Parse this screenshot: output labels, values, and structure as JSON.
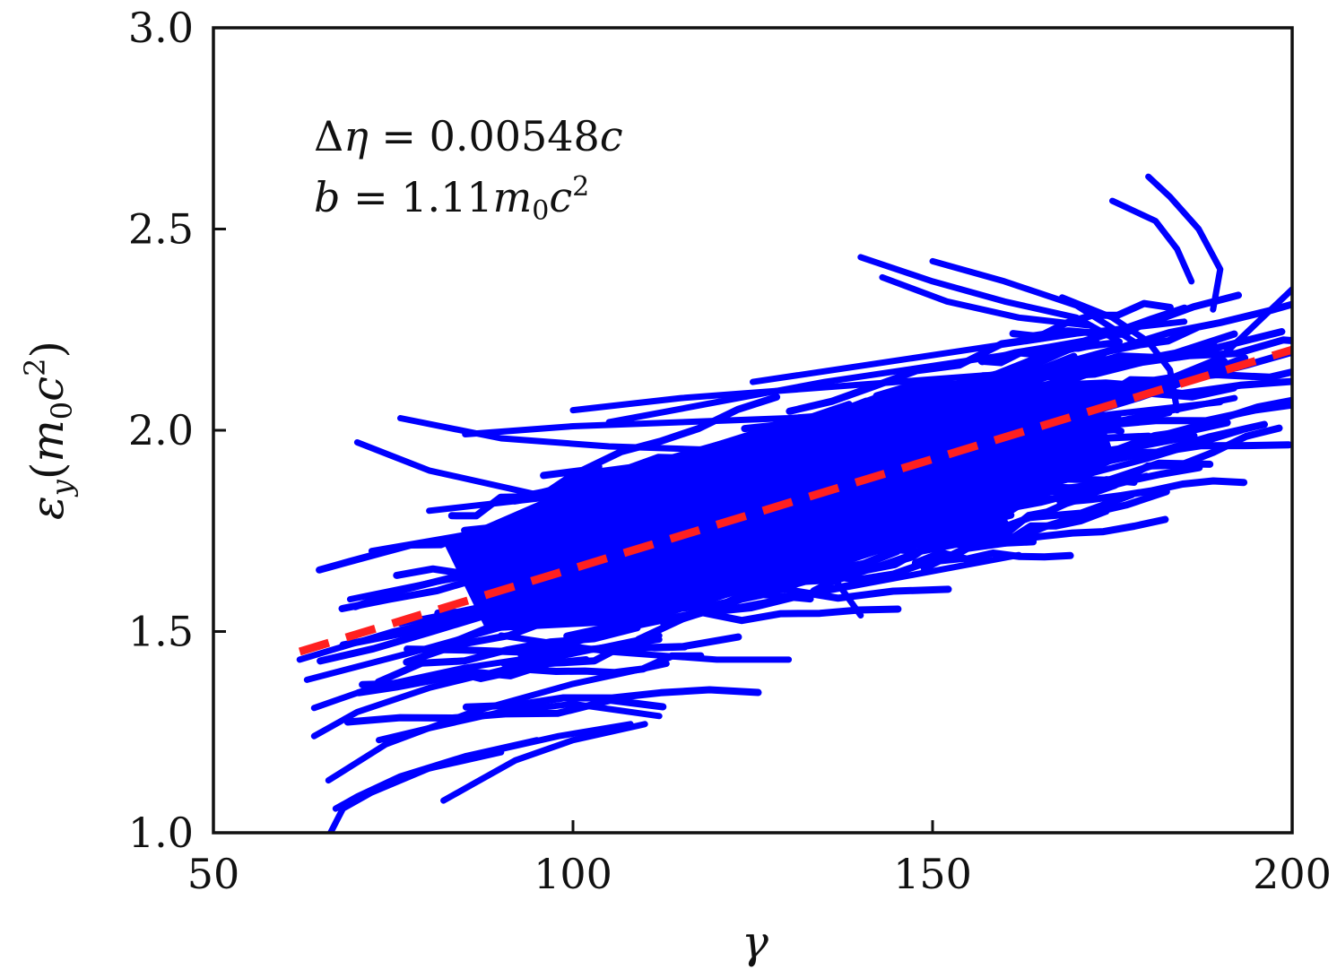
{
  "chart_data": {
    "type": "scatter",
    "title": "",
    "xlabel": "γ",
    "ylabel": {
      "base": "ε",
      "subscript": "y",
      "open": "(",
      "unit_m": "m",
      "unit_sub": "0",
      "unit_c": "c",
      "unit_sup": "2",
      "close": ")"
    },
    "xlim": [
      50,
      200
    ],
    "ylim": [
      1.0,
      3.0
    ],
    "x_ticks": [
      50,
      100,
      150,
      200
    ],
    "x_tick_labels": [
      "50",
      "100",
      "150",
      "200"
    ],
    "y_ticks": [
      1.0,
      1.5,
      2.0,
      2.5,
      3.0
    ],
    "y_tick_labels": [
      "1.0",
      "1.5",
      "2.0",
      "2.5",
      "3.0"
    ],
    "grid": false,
    "annotations": {
      "line1": {
        "lhs_delta": "Δ",
        "lhs_var": "η",
        "eq": " = ",
        "value": "0.00548",
        "unit": "c"
      },
      "line2": {
        "lhs_var": "b",
        "eq": " = ",
        "value": "1.11",
        "unit_m": "m",
        "unit_sub": "0",
        "unit_c": "c",
        "unit_sup": "2"
      }
    },
    "series": [
      {
        "style": "trajectories",
        "color": "#0000ff",
        "trajectories": [
          {
            "x": [
              62,
              75,
              90,
              105,
              118
            ],
            "y": [
              1.43,
              1.5,
              1.56,
              1.6,
              1.63
            ]
          },
          {
            "x": [
              63,
              78,
              92,
              110,
              128
            ],
            "y": [
              1.38,
              1.45,
              1.52,
              1.58,
              1.63
            ]
          },
          {
            "x": [
              64,
              72,
              85,
              100,
              112
            ],
            "y": [
              1.31,
              1.36,
              1.41,
              1.45,
              1.48
            ]
          },
          {
            "x": [
              64,
              70,
              80,
              96,
              112
            ],
            "y": [
              1.24,
              1.3,
              1.36,
              1.43,
              1.49
            ]
          },
          {
            "x": [
              66,
              74,
              86,
              100,
              113
            ],
            "y": [
              1.13,
              1.22,
              1.3,
              1.37,
              1.42
            ]
          },
          {
            "x": [
              66,
              68,
              72,
              80,
              90
            ],
            "y": [
              0.99,
              1.06,
              1.1,
              1.16,
              1.2
            ]
          },
          {
            "x": [
              67,
              70,
              76,
              85,
              95
            ],
            "y": [
              1.06,
              1.09,
              1.14,
              1.19,
              1.23
            ]
          },
          {
            "x": [
              69,
              80,
              95,
              110,
              122
            ],
            "y": [
              1.58,
              1.62,
              1.67,
              1.72,
              1.76
            ]
          },
          {
            "x": [
              70,
              80,
              95,
              110,
              125
            ],
            "y": [
              1.97,
              1.9,
              1.84,
              1.82,
              1.83
            ]
          },
          {
            "x": [
              72,
              85,
              100,
              115,
              130
            ],
            "y": [
              1.7,
              1.74,
              1.78,
              1.82,
              1.86
            ]
          },
          {
            "x": [
              73,
              80,
              90,
              100,
              112
            ],
            "y": [
              1.23,
              1.26,
              1.3,
              1.32,
              1.29
            ]
          },
          {
            "x": [
              76,
              90,
              105,
              122,
              138
            ],
            "y": [
              2.03,
              1.98,
              1.96,
              1.95,
              1.97
            ]
          },
          {
            "x": [
              76,
              90,
              104,
              118,
              132
            ],
            "y": [
              1.52,
              1.57,
              1.62,
              1.67,
              1.72
            ]
          },
          {
            "x": [
              78,
              88,
              98,
              108
            ],
            "y": [
              1.15,
              1.2,
              1.24,
              1.27
            ]
          },
          {
            "x": [
              80,
              95,
              110,
              125,
              140
            ],
            "y": [
              1.8,
              1.83,
              1.88,
              1.92,
              1.95
            ]
          },
          {
            "x": [
              82,
              86,
              92,
              100,
              110
            ],
            "y": [
              1.08,
              1.12,
              1.18,
              1.23,
              1.27
            ]
          },
          {
            "x": [
              85,
              100,
              115,
              130,
              145
            ],
            "y": [
              1.99,
              2.01,
              2.02,
              2.03,
              2.05
            ]
          },
          {
            "x": [
              85,
              100,
              115,
              130,
              140
            ],
            "y": [
              1.65,
              1.7,
              1.74,
              1.79,
              1.54
            ]
          },
          {
            "x": [
              90,
              105,
              120,
              130
            ],
            "y": [
              1.49,
              1.45,
              1.43,
              1.43
            ]
          },
          {
            "x": [
              100,
              115,
              130,
              145,
              160
            ],
            "y": [
              2.05,
              2.08,
              2.1,
              2.12,
              2.14
            ]
          },
          {
            "x": [
              100,
              115,
              130,
              145,
              160
            ],
            "y": [
              1.68,
              1.72,
              1.76,
              1.8,
              1.82
            ]
          },
          {
            "x": [
              105,
              120,
              135,
              150,
              165
            ],
            "y": [
              2.02,
              2.07,
              2.12,
              2.16,
              2.2
            ]
          },
          {
            "x": [
              110,
              125,
              140,
              155,
              170
            ],
            "y": [
              1.8,
              1.86,
              1.92,
              1.98,
              2.03
            ]
          },
          {
            "x": [
              112,
              128,
              144,
              160,
              176
            ],
            "y": [
              1.75,
              1.78,
              1.82,
              1.87,
              1.93
            ]
          },
          {
            "x": [
              115,
              130,
              145,
              160,
              175,
              190
            ],
            "y": [
              1.85,
              1.9,
              1.95,
              2.0,
              2.04,
              2.07
            ]
          },
          {
            "x": [
              120,
              135,
              150,
              162
            ],
            "y": [
              1.55,
              1.6,
              1.65,
              1.69
            ]
          },
          {
            "x": [
              125,
              140,
              155,
              170,
              185
            ],
            "y": [
              2.12,
              2.16,
              2.2,
              2.24,
              2.27
            ]
          },
          {
            "x": [
              130,
              145,
              160,
              175,
              192
            ],
            "y": [
              1.9,
              1.93,
              1.97,
              2.02,
              2.08
            ]
          },
          {
            "x": [
              140,
              150,
              160,
              170,
              176
            ],
            "y": [
              2.43,
              2.37,
              2.32,
              2.28,
              2.22
            ]
          },
          {
            "x": [
              143,
              152,
              162,
              172
            ],
            "y": [
              2.38,
              2.32,
              2.28,
              2.26
            ]
          },
          {
            "x": [
              150,
              160,
              170,
              178
            ],
            "y": [
              2.42,
              2.37,
              2.31,
              2.22
            ]
          },
          {
            "x": [
              168,
              175,
              180,
              183,
              184
            ],
            "y": [
              2.33,
              2.28,
              2.22,
              2.15,
              2.05
            ]
          },
          {
            "x": [
              175,
              181,
              184,
              186
            ],
            "y": [
              2.57,
              2.52,
              2.45,
              2.37
            ]
          },
          {
            "x": [
              180,
              183,
              187,
              190,
              189
            ],
            "y": [
              2.63,
              2.58,
              2.5,
              2.4,
              2.3
            ]
          },
          {
            "x": [
              145,
              160,
              175,
              190,
              200
            ],
            "y": [
              1.93,
              2.0,
              2.07,
              2.18,
              2.35
            ]
          },
          {
            "x": [
              150,
              165,
              180,
              193
            ],
            "y": [
              1.78,
              1.86,
              1.93,
              2.0
            ]
          },
          {
            "x": [
              135,
              150,
              165,
              178
            ],
            "y": [
              1.72,
              1.77,
              1.82,
              1.88
            ]
          }
        ]
      },
      {
        "style": "fit-line",
        "color": "#ff2020",
        "x": [
          62,
          200
        ],
        "y": [
          1.45,
          2.2
        ]
      }
    ]
  }
}
